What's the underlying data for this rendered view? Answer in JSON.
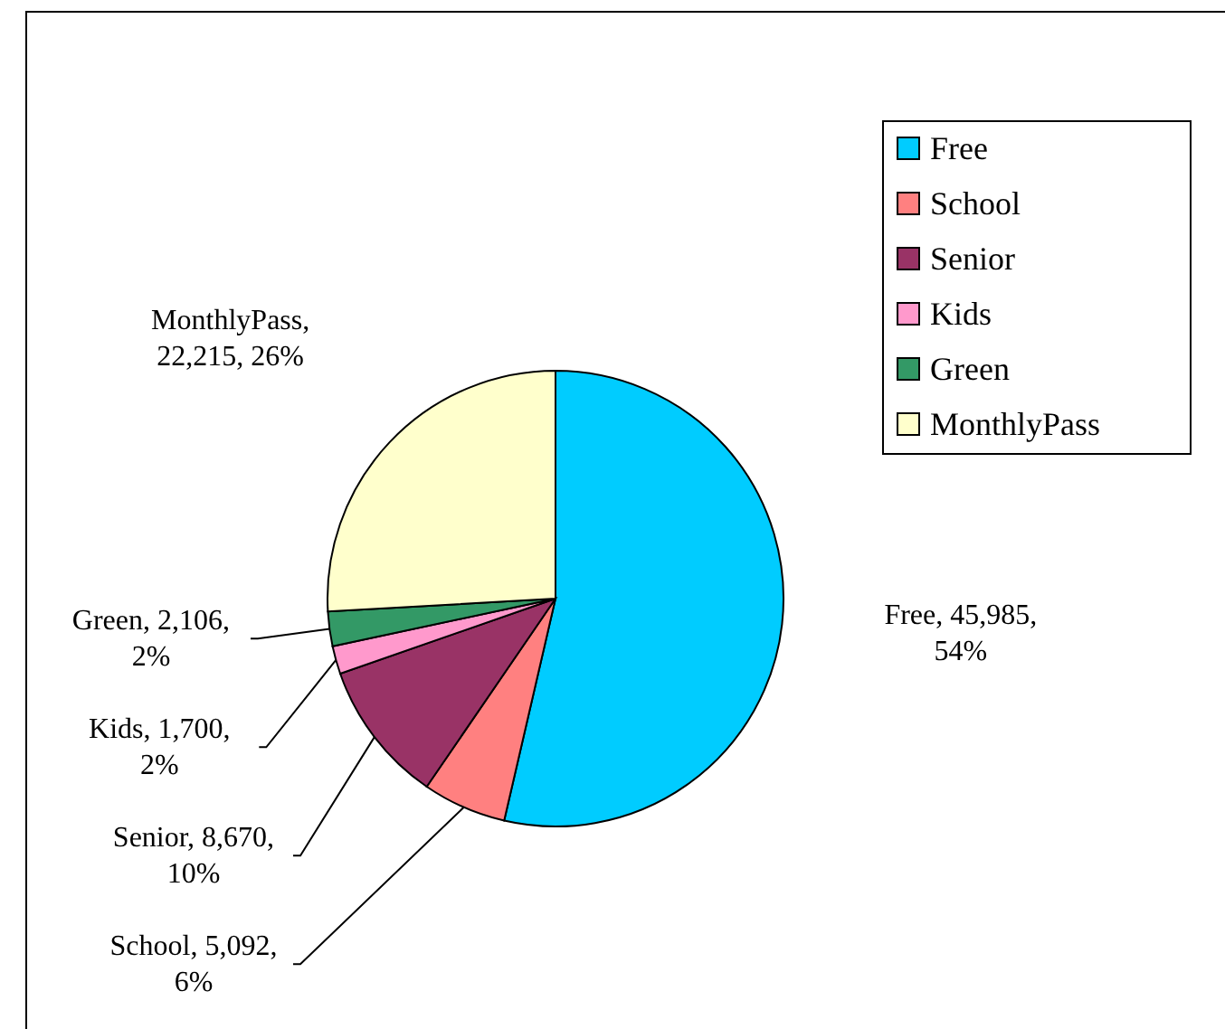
{
  "chart_data": {
    "type": "pie",
    "categories": [
      "Free",
      "School",
      "Senior",
      "Kids",
      "Green",
      "MonthlyPass"
    ],
    "values": [
      45985,
      5092,
      8670,
      1700,
      2106,
      22215
    ],
    "colors": [
      "#00ccff",
      "#ff8080",
      "#993366",
      "#ff99cc",
      "#339966",
      "#ffffcc"
    ],
    "value_labels": [
      "Free, 45,985, 54%",
      "School, 5,092, 6%",
      "Senior, 8,670, 10%",
      "Kids, 1,700, 2%",
      "Green, 2,106, 2%",
      "MonthlyPass, 22,215, 26%"
    ],
    "legend": "right"
  }
}
